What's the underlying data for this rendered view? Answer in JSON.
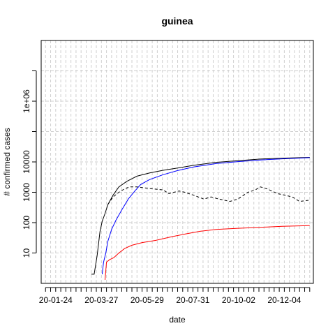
{
  "chart_data": {
    "type": "line",
    "title": "guinea",
    "xlabel": "date",
    "ylabel": "# confirmed cases",
    "y_scale": "log",
    "x_type": "date",
    "xlim": [
      "2020-01-04",
      "2021-01-13"
    ],
    "ylim": [
      1,
      100000000
    ],
    "x_tick_labels": [
      "20-01-24",
      "20-03-27",
      "20-05-29",
      "20-07-31",
      "20-10-02",
      "20-12-04"
    ],
    "x_minor_tick_step_days": 7,
    "y_ticks": [
      {
        "value": 10,
        "label": "10"
      },
      {
        "value": 100,
        "label": "100"
      },
      {
        "value": 1000,
        "label": "1000"
      },
      {
        "value": 10000,
        "label": "10000"
      },
      {
        "value": 1000000,
        "label": "1e+06"
      }
    ],
    "y_unlabeled_ticks": [
      100000,
      10000000
    ],
    "grid": true,
    "series": [
      {
        "color": "#000000",
        "dash": "solid",
        "x": [
          "2020-03-13",
          "2020-03-17",
          "2020-03-19",
          "2020-03-21",
          "2020-03-23",
          "2020-03-25",
          "2020-03-28",
          "2020-04-01",
          "2020-04-05",
          "2020-04-12",
          "2020-04-20",
          "2020-05-01",
          "2020-05-15",
          "2020-06-01",
          "2020-06-20",
          "2020-07-10",
          "2020-08-01",
          "2020-09-01",
          "2020-10-01",
          "2020-11-01",
          "2020-12-01",
          "2021-01-08"
        ],
        "y": [
          2,
          2,
          4,
          8,
          20,
          50,
          110,
          200,
          400,
          800,
          1500,
          2300,
          3400,
          4300,
          5300,
          6300,
          7700,
          9700,
          11000,
          12400,
          13300,
          14100
        ]
      },
      {
        "color": "#0000ff",
        "dash": "solid",
        "x": [
          "2020-03-28",
          "2020-03-30",
          "2020-04-02",
          "2020-04-05",
          "2020-04-10",
          "2020-04-16",
          "2020-04-24",
          "2020-05-03",
          "2020-05-12",
          "2020-05-20",
          "2020-06-01",
          "2020-06-20",
          "2020-07-10",
          "2020-08-01",
          "2020-09-01",
          "2020-10-01",
          "2020-11-01",
          "2020-12-01",
          "2021-01-08"
        ],
        "y": [
          2,
          5,
          10,
          25,
          60,
          120,
          260,
          600,
          1100,
          1800,
          2600,
          3800,
          5200,
          6800,
          8800,
          10200,
          11600,
          12600,
          13800
        ]
      },
      {
        "color": "#ff0000",
        "dash": "solid",
        "x": [
          "2020-04-01",
          "2020-04-03",
          "2020-04-07",
          "2020-04-13",
          "2020-04-20",
          "2020-04-28",
          "2020-05-08",
          "2020-05-22",
          "2020-06-10",
          "2020-07-01",
          "2020-07-20",
          "2020-08-10",
          "2020-09-01",
          "2020-10-01",
          "2020-11-01",
          "2020-12-01",
          "2021-01-08"
        ],
        "y": [
          1.3,
          5,
          6,
          7,
          10,
          14,
          18,
          22,
          26,
          34,
          42,
          52,
          60,
          65,
          70,
          76,
          80
        ]
      },
      {
        "color": "#000000",
        "dash": "dashed",
        "x": [
          "2020-04-05",
          "2020-04-12",
          "2020-04-20",
          "2020-04-28",
          "2020-05-05",
          "2020-05-15",
          "2020-05-25",
          "2020-06-05",
          "2020-06-20",
          "2020-06-28",
          "2020-07-05",
          "2020-07-12",
          "2020-07-20",
          "2020-08-01",
          "2020-08-15",
          "2020-08-25",
          "2020-09-05",
          "2020-09-20",
          "2020-10-01",
          "2020-10-15",
          "2020-10-25",
          "2020-11-01",
          "2020-11-10",
          "2020-11-25",
          "2020-12-05",
          "2020-12-15",
          "2020-12-25",
          "2021-01-08"
        ],
        "y": [
          400,
          700,
          1000,
          1300,
          1500,
          1500,
          1400,
          1300,
          1200,
          900,
          1000,
          1100,
          1000,
          800,
          600,
          700,
          600,
          500,
          600,
          1000,
          1200,
          1500,
          1300,
          900,
          800,
          700,
          500,
          550
        ]
      }
    ]
  }
}
